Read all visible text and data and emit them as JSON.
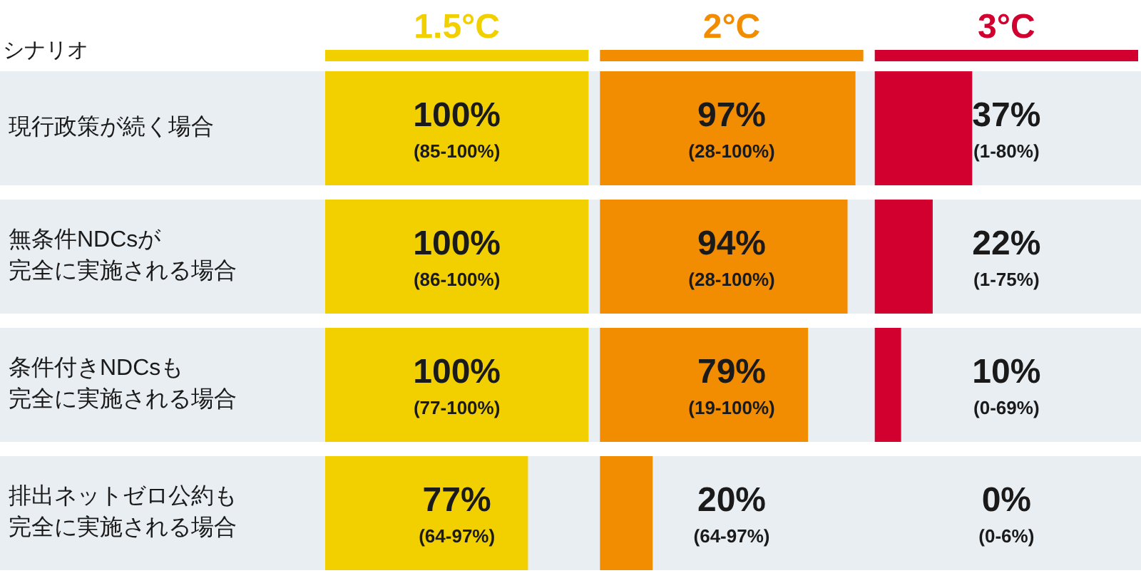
{
  "chart_data": [
    {
      "type": "bar",
      "orientation": "horizontal",
      "title": "1.5°C",
      "ylabel": "シナリオ",
      "tick_labels": "y",
      "color": "#f2d000",
      "categories": [
        "現行政策が続く場合",
        "無条件NDCsが完全に実施される場合",
        "条件付きNDCsも完全に実施される場合",
        "排出ネットゼロ公約も完全に実施される場合"
      ],
      "values": [
        100,
        100,
        100,
        77
      ],
      "value_labels": [
        "100%\n(85-100%)",
        "100%\n(86-100%)",
        "100%\n(77-100%)",
        "77%\n(64-97%)"
      ]
    },
    {
      "type": "bar",
      "orientation": "horizontal",
      "title": "2°C",
      "tick_labels": false,
      "color": "#f28c00",
      "categories": [
        null,
        null,
        null,
        null
      ],
      "values": [
        97,
        94,
        79,
        20
      ],
      "value_labels": [
        "97%\n(28-100%)",
        "94%\n(28-100%)",
        "79%\n(19-100%)",
        "20%\n(64-97%)"
      ]
    },
    {
      "type": "bar",
      "orientation": "horizontal",
      "title": "3°C",
      "tick_labels": false,
      "color": "#d1002f",
      "categories": [
        null,
        null,
        null,
        null
      ],
      "values": [
        37,
        22,
        10,
        0
      ],
      "value_labels": [
        "37%\n(1-80%)",
        "22%\n(1-75%)",
        "10%\n(0-69%)",
        "0%\n(0-6%)"
      ]
    }
  ]
}
